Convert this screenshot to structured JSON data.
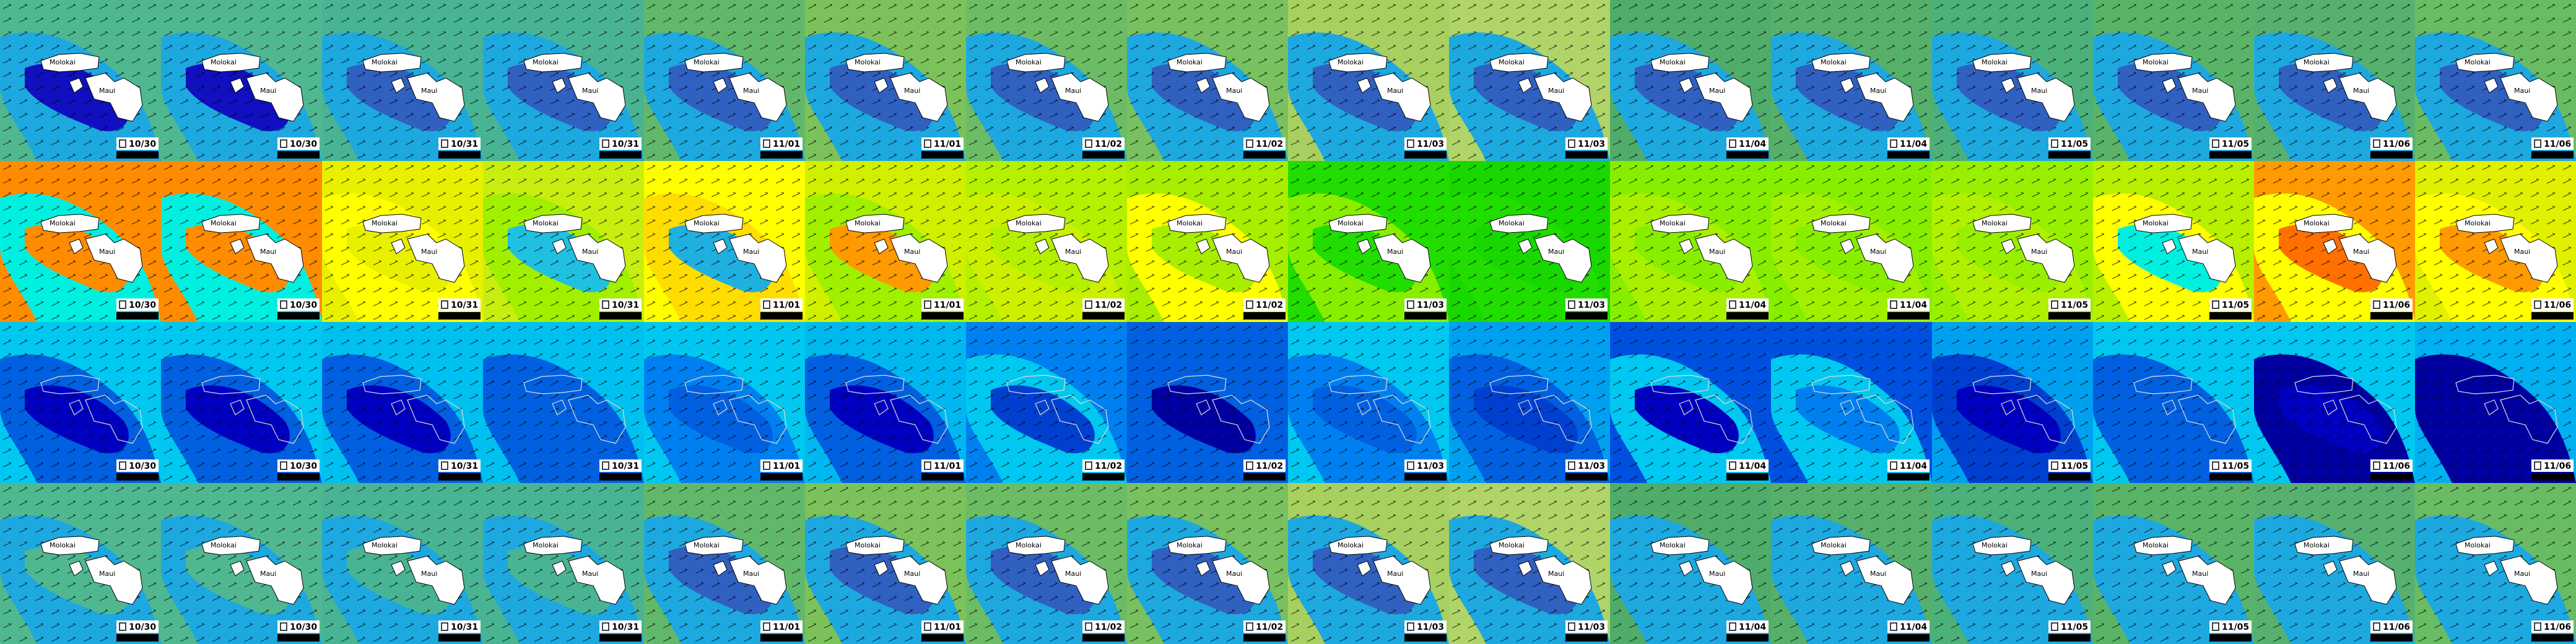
{
  "columns": [
    {
      "date": "10/30"
    },
    {
      "date": "10/30"
    },
    {
      "date": "10/31"
    },
    {
      "date": "10/31"
    },
    {
      "date": "11/01"
    },
    {
      "date": "11/01"
    },
    {
      "date": "11/02"
    },
    {
      "date": "11/02"
    },
    {
      "date": "11/03"
    },
    {
      "date": "11/03"
    },
    {
      "date": "11/04"
    },
    {
      "date": "11/04"
    },
    {
      "date": "11/05"
    },
    {
      "date": "11/05"
    },
    {
      "date": "11/06"
    },
    {
      "date": "11/06"
    }
  ],
  "islands": [
    "Molokai",
    "Maui"
  ],
  "rows": [
    {
      "filled": true,
      "background": [
        "#50b890",
        "#50b890",
        "#48b494",
        "#48b494",
        "#62b86a",
        "#7cc25a",
        "#6cbc66",
        "#78c060",
        "#a8d060",
        "#b0d468",
        "#50ac6a",
        "#56b06a",
        "#4cb07a",
        "#5ab468",
        "#56b070",
        "#6abc64"
      ],
      "patch": [
        "#1ea8e0",
        "#1ea8e0",
        "#1ea8e0",
        "#1ea8e0",
        "#1ea8e0",
        "#1ea8e0",
        "#1ea8e0",
        "#1ea8e0",
        "#1ea8e0",
        "#1ea8e0",
        "#1ea8e0",
        "#1ea8e0",
        "#1ea8e0",
        "#1ea8e0",
        "#1ea8e0",
        "#1ea8e0"
      ],
      "core": [
        "#1010c0",
        "#1010c0",
        "#3060c0",
        "#3060c0",
        "#3060c0",
        "#3060c0",
        "#3060c0",
        "#3060c0",
        "#3060c0",
        "#3060c0",
        "#3060c0",
        "#3060c0",
        "#3060c0",
        "#3060c0",
        "#3060c0",
        "#3060c0"
      ]
    },
    {
      "filled": true,
      "background": [
        "#ff8c00",
        "#ff8c00",
        "#e8f000",
        "#c8ee10",
        "#ffff00",
        "#d0f000",
        "#b4f000",
        "#a8ee00",
        "#22dd00",
        "#18d800",
        "#88ee00",
        "#88ee00",
        "#98f000",
        "#b8f000",
        "#ff9a00",
        "#e0f000"
      ],
      "patch": [
        "#00f0e0",
        "#00f0e0",
        "#ffff00",
        "#a0f000",
        "#ffdd00",
        "#a0f000",
        "#ccf000",
        "#ffff00",
        "#88ee00",
        "#22dd00",
        "#a8f000",
        "#a0f000",
        "#b0f000",
        "#ffff00",
        "#ffff00",
        "#ffff00"
      ],
      "core": [
        "#ff8c00",
        "#ff8c00",
        "#e8f000",
        "#20c0e0",
        "#20b0e0",
        "#ff9a00",
        "#b4f000",
        "#a8ee00",
        "#22dd00",
        "#18d800",
        "#88ee00",
        "#88ee00",
        "#98f000",
        "#00f0e0",
        "#ff7000",
        "#ff9a00"
      ]
    },
    {
      "filled": false,
      "background": [
        "#00c8f0",
        "#00c8f0",
        "#00c0f0",
        "#00c0f0",
        "#00c8f0",
        "#00b8f0",
        "#0080f0",
        "#0060e0",
        "#00c8f0",
        "#00a0f0",
        "#0050e0",
        "#0050e0",
        "#00a0f0",
        "#00c8f0",
        "#00c8f0",
        "#00b0f0"
      ],
      "patch": [
        "#0060e0",
        "#0060e0",
        "#0060e0",
        "#0060e0",
        "#0080f0",
        "#0060e0",
        "#00c8f0",
        "#0060e0",
        "#0080f0",
        "#0060e0",
        "#00c8f0",
        "#00c8f0",
        "#0040d0",
        "#0060e0",
        "#0000a0",
        "#0000a0"
      ],
      "core": [
        "#0000c0",
        "#0000c0",
        "#0000c0",
        "#0060e0",
        "#0060e0",
        "#0000c0",
        "#0040d0",
        "#0000a0",
        "#0060e0",
        "#0040d0",
        "#0000c0",
        "#0080f0",
        "#0000c0",
        "#0060e0",
        "#0000c0",
        "#0000a0"
      ]
    },
    {
      "filled": true,
      "background": [
        "#50b890",
        "#50b890",
        "#48b494",
        "#48b494",
        "#62b86a",
        "#7cc25a",
        "#6cbc66",
        "#78c060",
        "#a8d060",
        "#b0d468",
        "#50ac6a",
        "#56b06a",
        "#4cb07a",
        "#5ab468",
        "#56b070",
        "#6abc64"
      ],
      "patch": [
        "#1ea8e0",
        "#1ea8e0",
        "#1ea8e0",
        "#1ea8e0",
        "#1ea8e0",
        "#1ea8e0",
        "#1ea8e0",
        "#1ea8e0",
        "#1ea8e0",
        "#1ea8e0",
        "#1ea8e0",
        "#1ea8e0",
        "#1ea8e0",
        "#1ea8e0",
        "#1ea8e0",
        "#1ea8e0"
      ],
      "core": [
        "#50b890",
        "#50b890",
        "#48b494",
        "#48b494",
        "#3060c0",
        "#3060c0",
        "#3060c0",
        "#3060c0",
        "#3060c0",
        "#3060c0",
        "#1ea8e0",
        "#1ea8e0",
        "#1ea8e0",
        "#1ea8e0",
        "#1ea8e0",
        "#1ea8e0"
      ]
    }
  ]
}
